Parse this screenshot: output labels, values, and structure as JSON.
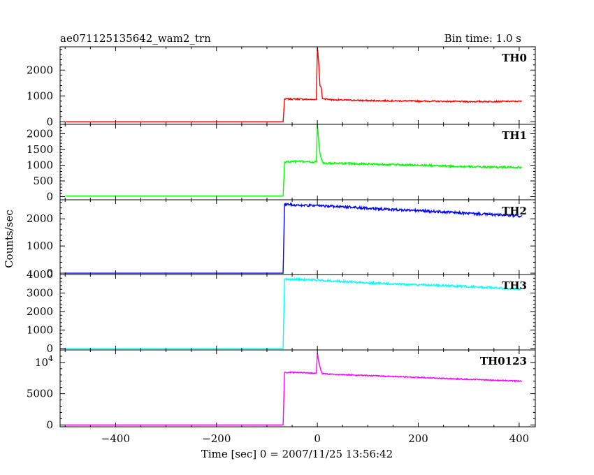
{
  "header": {
    "title": "ae071125135642_wam2_trn",
    "bin_time": "Bin time: 1.0 s"
  },
  "chart_data": {
    "type": "line",
    "xlabel": "Time [sec] 0 = 2007/11/25 13:56:42",
    "ylabel": "Counts/sec",
    "xlim": [
      -510,
      432
    ],
    "x_ticks": [
      {
        "value": -400,
        "label": "−400"
      },
      {
        "value": -200,
        "label": "−200"
      },
      {
        "value": 0,
        "label": "0"
      },
      {
        "value": 200,
        "label": "200"
      },
      {
        "value": 400,
        "label": "400"
      }
    ],
    "x_range": [
      -500,
      405
    ],
    "grid": false,
    "panels": [
      {
        "name": "TH0",
        "color": "#ff0000",
        "ylim": [
          -100,
          2900
        ],
        "yticks": [
          {
            "value": 0,
            "label": "0"
          },
          {
            "value": 1000,
            "label": "1000"
          },
          {
            "value": 2000,
            "label": "2000"
          }
        ],
        "series_points": [
          [
            -500,
            0
          ],
          [
            -68,
            0
          ],
          [
            -65,
            880
          ],
          [
            -40,
            880
          ],
          [
            -10,
            860
          ],
          [
            -2,
            870
          ],
          [
            0,
            2900
          ],
          [
            3,
            2200
          ],
          [
            5,
            1400
          ],
          [
            8,
            1300
          ],
          [
            10,
            900
          ],
          [
            30,
            850
          ],
          [
            100,
            820
          ],
          [
            200,
            800
          ],
          [
            300,
            780
          ],
          [
            405,
            790
          ]
        ],
        "noise": 25
      },
      {
        "name": "TH1",
        "color": "#00ff00",
        "ylim": [
          -100,
          2300
        ],
        "yticks": [
          {
            "value": 0,
            "label": "0"
          },
          {
            "value": 500,
            "label": "500"
          },
          {
            "value": 1000,
            "label": "1000"
          },
          {
            "value": 1500,
            "label": "1500"
          },
          {
            "value": 2000,
            "label": "2000"
          }
        ],
        "series_points": [
          [
            -500,
            20
          ],
          [
            -68,
            20
          ],
          [
            -65,
            1100
          ],
          [
            -40,
            1120
          ],
          [
            -10,
            1100
          ],
          [
            -2,
            1100
          ],
          [
            0,
            2300
          ],
          [
            3,
            1700
          ],
          [
            5,
            1400
          ],
          [
            8,
            1200
          ],
          [
            12,
            1050
          ],
          [
            30,
            1060
          ],
          [
            100,
            1040
          ],
          [
            200,
            1000
          ],
          [
            300,
            950
          ],
          [
            405,
            930
          ]
        ],
        "noise": 30
      },
      {
        "name": "TH2",
        "color": "#0000ff",
        "ylim": [
          -50,
          2700
        ],
        "yticks": [
          {
            "value": 0,
            "label": "0"
          },
          {
            "value": 1000,
            "label": "1000"
          },
          {
            "value": 2000,
            "label": "2000"
          }
        ],
        "series_points": [
          [
            -500,
            0
          ],
          [
            -68,
            0
          ],
          [
            -65,
            2550
          ],
          [
            -40,
            2500
          ],
          [
            0,
            2480
          ],
          [
            50,
            2450
          ],
          [
            100,
            2380
          ],
          [
            200,
            2300
          ],
          [
            300,
            2200
          ],
          [
            405,
            2100
          ]
        ],
        "noise": 45
      },
      {
        "name": "TH3",
        "color": "#00ffff",
        "ylim": [
          -80,
          4000
        ],
        "yticks": [
          {
            "value": 0,
            "label": "0"
          },
          {
            "value": 1000,
            "label": "1000"
          },
          {
            "value": 2000,
            "label": "2000"
          },
          {
            "value": 3000,
            "label": "3000"
          },
          {
            "value": 4000,
            "label": "4000"
          }
        ],
        "series_points": [
          [
            -500,
            0
          ],
          [
            -68,
            0
          ],
          [
            -65,
            3750
          ],
          [
            0,
            3700
          ],
          [
            100,
            3550
          ],
          [
            200,
            3450
          ],
          [
            300,
            3350
          ],
          [
            405,
            3200
          ]
        ],
        "noise": 55
      },
      {
        "name": "TH0123",
        "color": "#ff00ff",
        "ylim": [
          -300,
          12000
        ],
        "yticks": [
          {
            "value": 0,
            "label": "0"
          },
          {
            "value": 5000,
            "label": "5000"
          },
          {
            "value": 10000,
            "label": "10",
            "exp": "4"
          }
        ],
        "series_points": [
          [
            -500,
            0
          ],
          [
            -68,
            0
          ],
          [
            -65,
            8400
          ],
          [
            -40,
            8400
          ],
          [
            -10,
            8300
          ],
          [
            -2,
            8300
          ],
          [
            0,
            11500
          ],
          [
            3,
            10000
          ],
          [
            6,
            9000
          ],
          [
            10,
            8200
          ],
          [
            30,
            8100
          ],
          [
            100,
            7900
          ],
          [
            200,
            7600
          ],
          [
            300,
            7300
          ],
          [
            405,
            7000
          ]
        ],
        "noise": 90
      }
    ]
  }
}
